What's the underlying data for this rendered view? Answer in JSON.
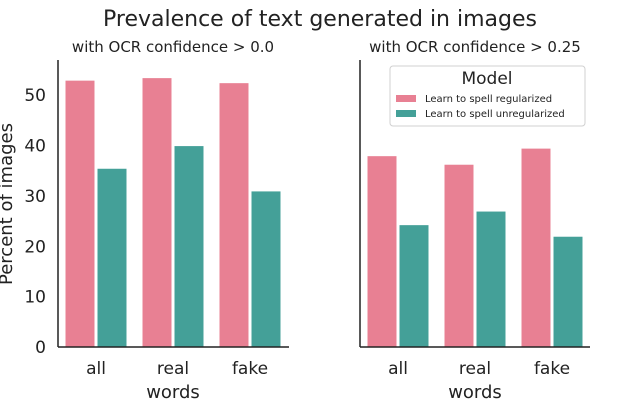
{
  "chart_data": {
    "type": "bar",
    "title": "Prevalence of text generated in images",
    "ylabel": "Percent of images",
    "ylim": [
      0,
      57
    ],
    "yticks": [
      0,
      10,
      20,
      30,
      40,
      50
    ],
    "grid": false,
    "legend": {
      "title": "Model",
      "placement": "top-right of right panel",
      "entries": [
        "Learn to spell regularized",
        "Learn to spell unregularized"
      ]
    },
    "colors": {
      "regularized": "#e88093",
      "unregularized": "#44a098"
    },
    "panels": [
      {
        "subtitle": "with OCR confidence > 0.0",
        "xlabel": "words",
        "categories": [
          "all",
          "real",
          "fake"
        ],
        "series": [
          {
            "name": "Learn to spell regularized",
            "values": [
              53,
              53.5,
              52.5
            ]
          },
          {
            "name": "Learn to spell unregularized",
            "values": [
              35.5,
              40,
              31
            ]
          }
        ]
      },
      {
        "subtitle": "with OCR confidence > 0.25",
        "xlabel": "words",
        "categories": [
          "all",
          "real",
          "fake"
        ],
        "series": [
          {
            "name": "Learn to spell regularized",
            "values": [
              38,
              36.3,
              39.5
            ]
          },
          {
            "name": "Learn to spell unregularized",
            "values": [
              24.3,
              27,
              22
            ]
          }
        ]
      }
    ]
  }
}
